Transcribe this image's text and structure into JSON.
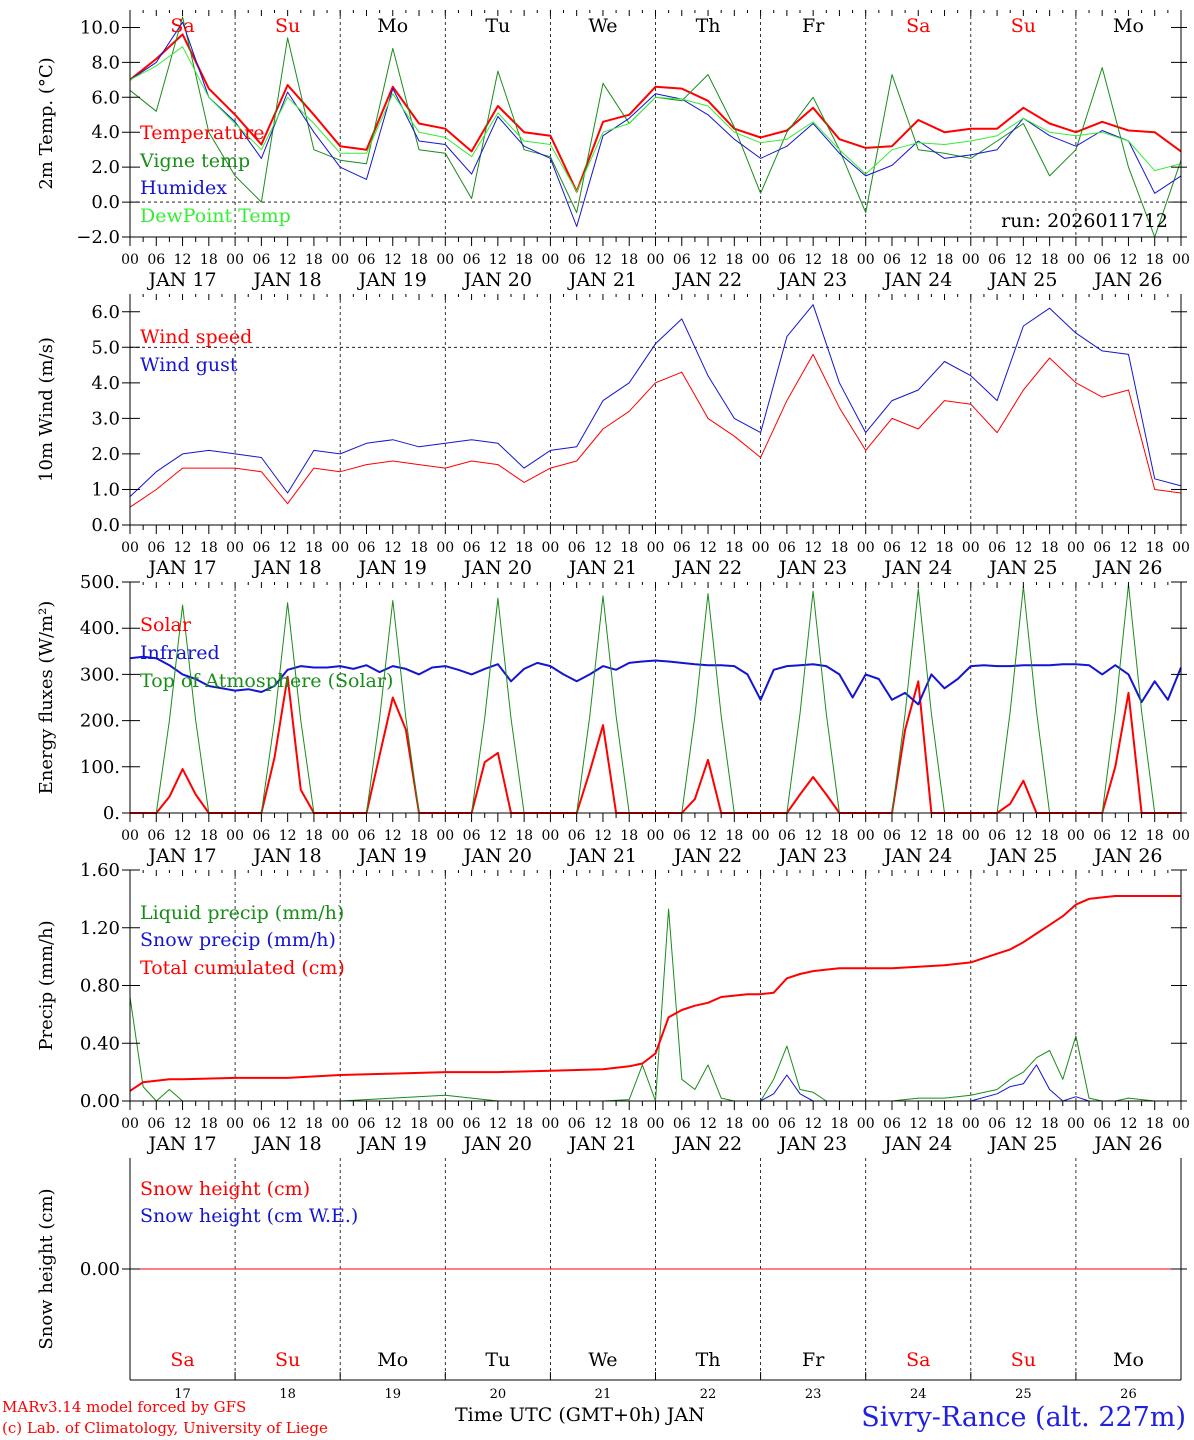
{
  "run_label": "run: 2026011712",
  "colors": {
    "red": "#ff0000",
    "green": "#1a8c1a",
    "blue": "#1414d2",
    "lightgreen": "#33ee33",
    "weekday": "#000000",
    "weekend": "#ff0000"
  },
  "days": [
    {
      "dow": "Sa",
      "date": "JAN 17",
      "num": "17",
      "weekend": true
    },
    {
      "dow": "Su",
      "date": "JAN 18",
      "num": "18",
      "weekend": true
    },
    {
      "dow": "Mo",
      "date": "JAN 19",
      "num": "19",
      "weekend": false
    },
    {
      "dow": "Tu",
      "date": "JAN 20",
      "num": "20",
      "weekend": false
    },
    {
      "dow": "We",
      "date": "JAN 21",
      "num": "21",
      "weekend": false
    },
    {
      "dow": "Th",
      "date": "JAN 22",
      "num": "22",
      "weekend": false
    },
    {
      "dow": "Fr",
      "date": "JAN 23",
      "num": "23",
      "weekend": false
    },
    {
      "dow": "Sa",
      "date": "JAN 24",
      "num": "24",
      "weekend": true
    },
    {
      "dow": "Su",
      "date": "JAN 25",
      "num": "25",
      "weekend": true
    },
    {
      "dow": "Mo",
      "date": "JAN 26",
      "num": "26",
      "weekend": false
    }
  ],
  "hour_labels": [
    "00",
    "06",
    "12",
    "18"
  ],
  "end_hour_label": "00",
  "footer": {
    "credit_line1": "MARv3.14 model forced by GFS",
    "credit_line2": "(c) Lab. of Climatology, University of Liege",
    "xlabel": "Time UTC (GMT+0h) JAN",
    "station": "Sivry-Rance (alt. 227m)"
  },
  "chart_data": [
    {
      "id": "temp",
      "type": "line",
      "ylabel": "2m Temp. (°C)",
      "ylim": [
        -2,
        11
      ],
      "yticks": [
        -2,
        0,
        2,
        4,
        6,
        8,
        10
      ],
      "ytick_labels": [
        "−2.0",
        "0.0",
        "2.0",
        "4.0",
        "6.0",
        "8.0",
        "10.0"
      ],
      "ref_lines": [
        0
      ],
      "x_hours": [
        0,
        6,
        12,
        18,
        24,
        30,
        36,
        42,
        48,
        54,
        60,
        66,
        72,
        78,
        84,
        90,
        96,
        102,
        108,
        114,
        120,
        126,
        132,
        138,
        144,
        150,
        156,
        162,
        168,
        174,
        180,
        186,
        192,
        198,
        204,
        210,
        216,
        222,
        228,
        234,
        240
      ],
      "series": [
        {
          "name": "Temperature",
          "color": "red",
          "width": 2,
          "values": [
            7.0,
            8.2,
            9.6,
            6.5,
            5.0,
            3.3,
            6.7,
            5.0,
            3.2,
            3.0,
            6.6,
            4.5,
            4.2,
            2.9,
            5.5,
            4.0,
            3.8,
            0.6,
            4.6,
            5.0,
            6.6,
            6.5,
            5.8,
            4.2,
            3.7,
            4.1,
            5.4,
            3.6,
            3.1,
            3.2,
            4.7,
            4.0,
            4.2,
            4.2,
            5.4,
            4.5,
            4.0,
            4.6,
            4.1,
            4.0,
            2.9
          ]
        },
        {
          "name": "Vigne temp",
          "color": "green",
          "width": 1,
          "values": [
            6.4,
            5.2,
            10.6,
            4.0,
            1.5,
            0.0,
            9.4,
            3.0,
            2.4,
            2.2,
            8.8,
            3.0,
            2.8,
            0.2,
            7.5,
            3.0,
            2.6,
            -0.6,
            6.8,
            4.5,
            6.0,
            5.8,
            7.3,
            4.3,
            0.5,
            4.0,
            6.0,
            3.0,
            -0.6,
            7.3,
            3.0,
            2.8,
            2.5,
            3.5,
            4.5,
            1.5,
            3.0,
            7.7,
            2.0,
            -2.0,
            2.4
          ]
        },
        {
          "name": "Humidex",
          "color": "blue",
          "width": 1,
          "values": [
            7.0,
            8.0,
            10.3,
            6.0,
            4.6,
            2.5,
            6.3,
            4.0,
            2.0,
            1.3,
            6.5,
            3.5,
            3.3,
            1.6,
            4.9,
            3.2,
            2.5,
            -1.4,
            3.8,
            4.8,
            6.2,
            5.9,
            5.0,
            3.6,
            2.5,
            3.2,
            4.5,
            2.8,
            1.5,
            2.1,
            3.5,
            2.5,
            2.7,
            3.0,
            4.8,
            3.8,
            3.2,
            4.1,
            3.5,
            0.5,
            1.5
          ]
        },
        {
          "name": "DewPoint Temp",
          "color": "lightgreen",
          "width": 1,
          "values": [
            7.0,
            7.8,
            8.9,
            6.0,
            4.5,
            3.0,
            6.0,
            4.5,
            2.8,
            2.8,
            6.2,
            4.0,
            3.7,
            2.6,
            5.1,
            3.5,
            3.3,
            0.6,
            4.0,
            4.5,
            6.0,
            5.9,
            5.5,
            4.0,
            3.4,
            3.6,
            4.6,
            3.0,
            1.6,
            3.0,
            3.4,
            3.3,
            3.5,
            3.8,
            4.8,
            4.0,
            3.8,
            4.0,
            3.5,
            1.8,
            2.2
          ]
        }
      ]
    },
    {
      "id": "wind",
      "type": "line",
      "ylabel": "10m Wind (m/s)",
      "ylim": [
        0,
        6.5
      ],
      "yticks": [
        0,
        1,
        2,
        3,
        4,
        5,
        6
      ],
      "ytick_labels": [
        "0.0",
        "1.0",
        "2.0",
        "3.0",
        "4.0",
        "5.0",
        "6.0"
      ],
      "ref_lines": [
        5
      ],
      "x_hours": [
        0,
        6,
        12,
        18,
        24,
        30,
        36,
        42,
        48,
        54,
        60,
        66,
        72,
        78,
        84,
        90,
        96,
        102,
        108,
        114,
        120,
        126,
        132,
        138,
        144,
        150,
        156,
        162,
        168,
        174,
        180,
        186,
        192,
        198,
        204,
        210,
        216,
        222,
        228,
        234,
        240
      ],
      "series": [
        {
          "name": "Wind speed",
          "color": "red",
          "width": 1,
          "values": [
            0.5,
            1.0,
            1.6,
            1.6,
            1.6,
            1.5,
            0.6,
            1.6,
            1.5,
            1.7,
            1.8,
            1.7,
            1.6,
            1.8,
            1.7,
            1.2,
            1.6,
            1.8,
            2.7,
            3.2,
            4.0,
            4.3,
            3.0,
            2.5,
            1.9,
            3.5,
            4.8,
            3.3,
            2.1,
            3.0,
            2.7,
            3.5,
            3.4,
            2.6,
            3.8,
            4.7,
            4.0,
            3.6,
            3.8,
            1.0,
            0.9
          ]
        },
        {
          "name": "Wind gust",
          "color": "blue",
          "width": 1,
          "values": [
            0.8,
            1.5,
            2.0,
            2.1,
            2.0,
            1.9,
            0.9,
            2.1,
            2.0,
            2.3,
            2.4,
            2.2,
            2.3,
            2.4,
            2.3,
            1.6,
            2.1,
            2.2,
            3.5,
            4.0,
            5.1,
            5.8,
            4.2,
            3.0,
            2.6,
            5.3,
            6.2,
            4.0,
            2.6,
            3.5,
            3.8,
            4.6,
            4.2,
            3.5,
            5.6,
            6.1,
            5.4,
            4.9,
            4.8,
            1.3,
            1.1
          ]
        }
      ]
    },
    {
      "id": "flux",
      "type": "line",
      "ylabel": "Energy fluxes (W/m²)",
      "ylim": [
        0,
        500
      ],
      "yticks": [
        0,
        100,
        200,
        300,
        400,
        500
      ],
      "ytick_labels": [
        "0.",
        "100.",
        "200.",
        "300.",
        "400.",
        "500."
      ],
      "ref_lines": [],
      "x_hours": [
        0,
        3,
        6,
        9,
        12,
        15,
        18,
        21,
        24,
        27,
        30,
        33,
        36,
        39,
        42,
        45,
        48,
        51,
        54,
        57,
        60,
        63,
        66,
        69,
        72,
        75,
        78,
        81,
        84,
        87,
        90,
        93,
        96,
        99,
        102,
        105,
        108,
        111,
        114,
        117,
        120,
        123,
        126,
        129,
        132,
        135,
        138,
        141,
        144,
        147,
        150,
        153,
        156,
        159,
        162,
        165,
        168,
        171,
        174,
        177,
        180,
        183,
        186,
        189,
        192,
        195,
        198,
        201,
        204,
        207,
        210,
        213,
        216,
        219,
        222,
        225,
        228,
        231,
        234,
        237,
        240
      ],
      "series": [
        {
          "name": "Solar",
          "color": "red",
          "width": 2,
          "values": [
            0,
            0,
            0,
            35,
            95,
            40,
            0,
            0,
            0,
            0,
            0,
            120,
            295,
            50,
            0,
            0,
            0,
            0,
            0,
            125,
            250,
            180,
            0,
            0,
            0,
            0,
            0,
            110,
            130,
            0,
            0,
            0,
            0,
            0,
            0,
            90,
            190,
            0,
            0,
            0,
            0,
            0,
            0,
            30,
            115,
            0,
            0,
            0,
            0,
            0,
            0,
            40,
            78,
            40,
            0,
            0,
            0,
            0,
            0,
            180,
            285,
            0,
            0,
            0,
            0,
            0,
            0,
            20,
            70,
            0,
            0,
            0,
            0,
            0,
            0,
            100,
            260,
            0,
            0,
            0,
            0
          ]
        },
        {
          "name": "Infrared",
          "color": "blue",
          "width": 2,
          "values": [
            335,
            338,
            335,
            320,
            300,
            290,
            275,
            270,
            265,
            268,
            262,
            275,
            310,
            318,
            315,
            315,
            318,
            312,
            320,
            305,
            318,
            312,
            300,
            315,
            318,
            310,
            300,
            312,
            322,
            285,
            312,
            325,
            318,
            300,
            285,
            300,
            318,
            310,
            325,
            328,
            330,
            328,
            325,
            322,
            320,
            320,
            318,
            300,
            245,
            310,
            318,
            320,
            322,
            318,
            300,
            250,
            300,
            290,
            245,
            260,
            235,
            300,
            270,
            290,
            318,
            320,
            318,
            318,
            320,
            320,
            320,
            322,
            322,
            320,
            300,
            320,
            300,
            240,
            285,
            245,
            315
          ]
        },
        {
          "name": "Top of Atmosphere (Solar)",
          "color": "green",
          "width": 1,
          "values": [
            0,
            0,
            0,
            200,
            450,
            200,
            0,
            0,
            0,
            0,
            0,
            200,
            455,
            200,
            0,
            0,
            0,
            0,
            0,
            205,
            460,
            205,
            0,
            0,
            0,
            0,
            0,
            205,
            465,
            205,
            0,
            0,
            0,
            0,
            0,
            210,
            470,
            210,
            0,
            0,
            0,
            0,
            0,
            210,
            475,
            210,
            0,
            0,
            0,
            0,
            0,
            215,
            480,
            215,
            0,
            0,
            0,
            0,
            0,
            215,
            485,
            215,
            0,
            0,
            0,
            0,
            0,
            220,
            490,
            220,
            0,
            0,
            0,
            0,
            0,
            220,
            495,
            220,
            0,
            0,
            0
          ]
        }
      ]
    },
    {
      "id": "precip",
      "type": "line",
      "ylabel": "Precip (mm/h)",
      "ylim": [
        0,
        1.6
      ],
      "yticks": [
        0,
        0.4,
        0.8,
        1.2,
        1.6
      ],
      "ytick_labels": [
        "0.00",
        "0.40",
        "0.80",
        "1.20",
        "1.60"
      ],
      "ref_lines": [],
      "x_hours": [
        0,
        3,
        6,
        9,
        12,
        24,
        36,
        48,
        60,
        72,
        84,
        96,
        108,
        114,
        117,
        120,
        123,
        126,
        129,
        132,
        135,
        138,
        141,
        144,
        147,
        150,
        153,
        156,
        159,
        162,
        165,
        168,
        174,
        180,
        186,
        192,
        198,
        201,
        204,
        207,
        210,
        213,
        216,
        219,
        222,
        225,
        228,
        234,
        240
      ],
      "series": [
        {
          "name": "Liquid precip (mm/h)",
          "color": "green",
          "width": 1,
          "values": [
            0.72,
            0.1,
            0.0,
            0.08,
            0.0,
            0.0,
            0.0,
            0.0,
            0.02,
            0.04,
            0.0,
            0.0,
            0.0,
            0.01,
            0.25,
            0.0,
            1.33,
            0.15,
            0.08,
            0.25,
            0.02,
            0.0,
            0.0,
            0.0,
            0.15,
            0.38,
            0.08,
            0.06,
            0.0,
            0.0,
            0.0,
            0.0,
            0.0,
            0.02,
            0.02,
            0.04,
            0.08,
            0.15,
            0.2,
            0.3,
            0.35,
            0.15,
            0.45,
            0.02,
            0.0,
            0.0,
            0.02,
            0.0,
            0.0
          ]
        },
        {
          "name": "Snow precip (mm/h)",
          "color": "blue",
          "width": 1,
          "values": [
            0.0,
            0.0,
            0.0,
            0.0,
            0.0,
            0.0,
            0.0,
            0.0,
            0.0,
            0.0,
            0.0,
            0.0,
            0.0,
            0.0,
            0.0,
            0.0,
            0.0,
            0.0,
            0.0,
            0.0,
            0.0,
            0.0,
            0.0,
            0.0,
            0.05,
            0.18,
            0.05,
            0.0,
            0.0,
            0.0,
            0.0,
            0.0,
            0.0,
            0.0,
            0.0,
            0.0,
            0.05,
            0.1,
            0.12,
            0.25,
            0.08,
            0.0,
            0.03,
            0.0,
            0.0,
            0.0,
            0.0,
            0.0,
            0.0
          ]
        },
        {
          "name": "Total cumulated (cm)",
          "color": "red",
          "width": 2,
          "values": [
            0.07,
            0.13,
            0.14,
            0.15,
            0.15,
            0.16,
            0.16,
            0.18,
            0.19,
            0.2,
            0.2,
            0.21,
            0.22,
            0.24,
            0.26,
            0.33,
            0.58,
            0.63,
            0.66,
            0.68,
            0.72,
            0.73,
            0.74,
            0.74,
            0.75,
            0.85,
            0.88,
            0.9,
            0.91,
            0.92,
            0.92,
            0.92,
            0.92,
            0.93,
            0.94,
            0.96,
            1.02,
            1.05,
            1.1,
            1.16,
            1.22,
            1.28,
            1.36,
            1.4,
            1.41,
            1.42,
            1.42,
            1.42,
            1.42
          ]
        }
      ]
    },
    {
      "id": "snow",
      "type": "line",
      "ylabel": "Snow height (cm)",
      "ylim": [
        -1,
        1
      ],
      "yticks": [
        0
      ],
      "ytick_labels": [
        "0.00"
      ],
      "ref_lines": [],
      "x_hours": [
        0,
        240
      ],
      "series": [
        {
          "name": "Snow height (cm)",
          "color": "red",
          "width": 1,
          "values": [
            0,
            0
          ]
        },
        {
          "name": "Snow height (cm W.E.)",
          "color": "blue",
          "width": 0,
          "values": [
            0,
            0
          ]
        }
      ]
    }
  ]
}
